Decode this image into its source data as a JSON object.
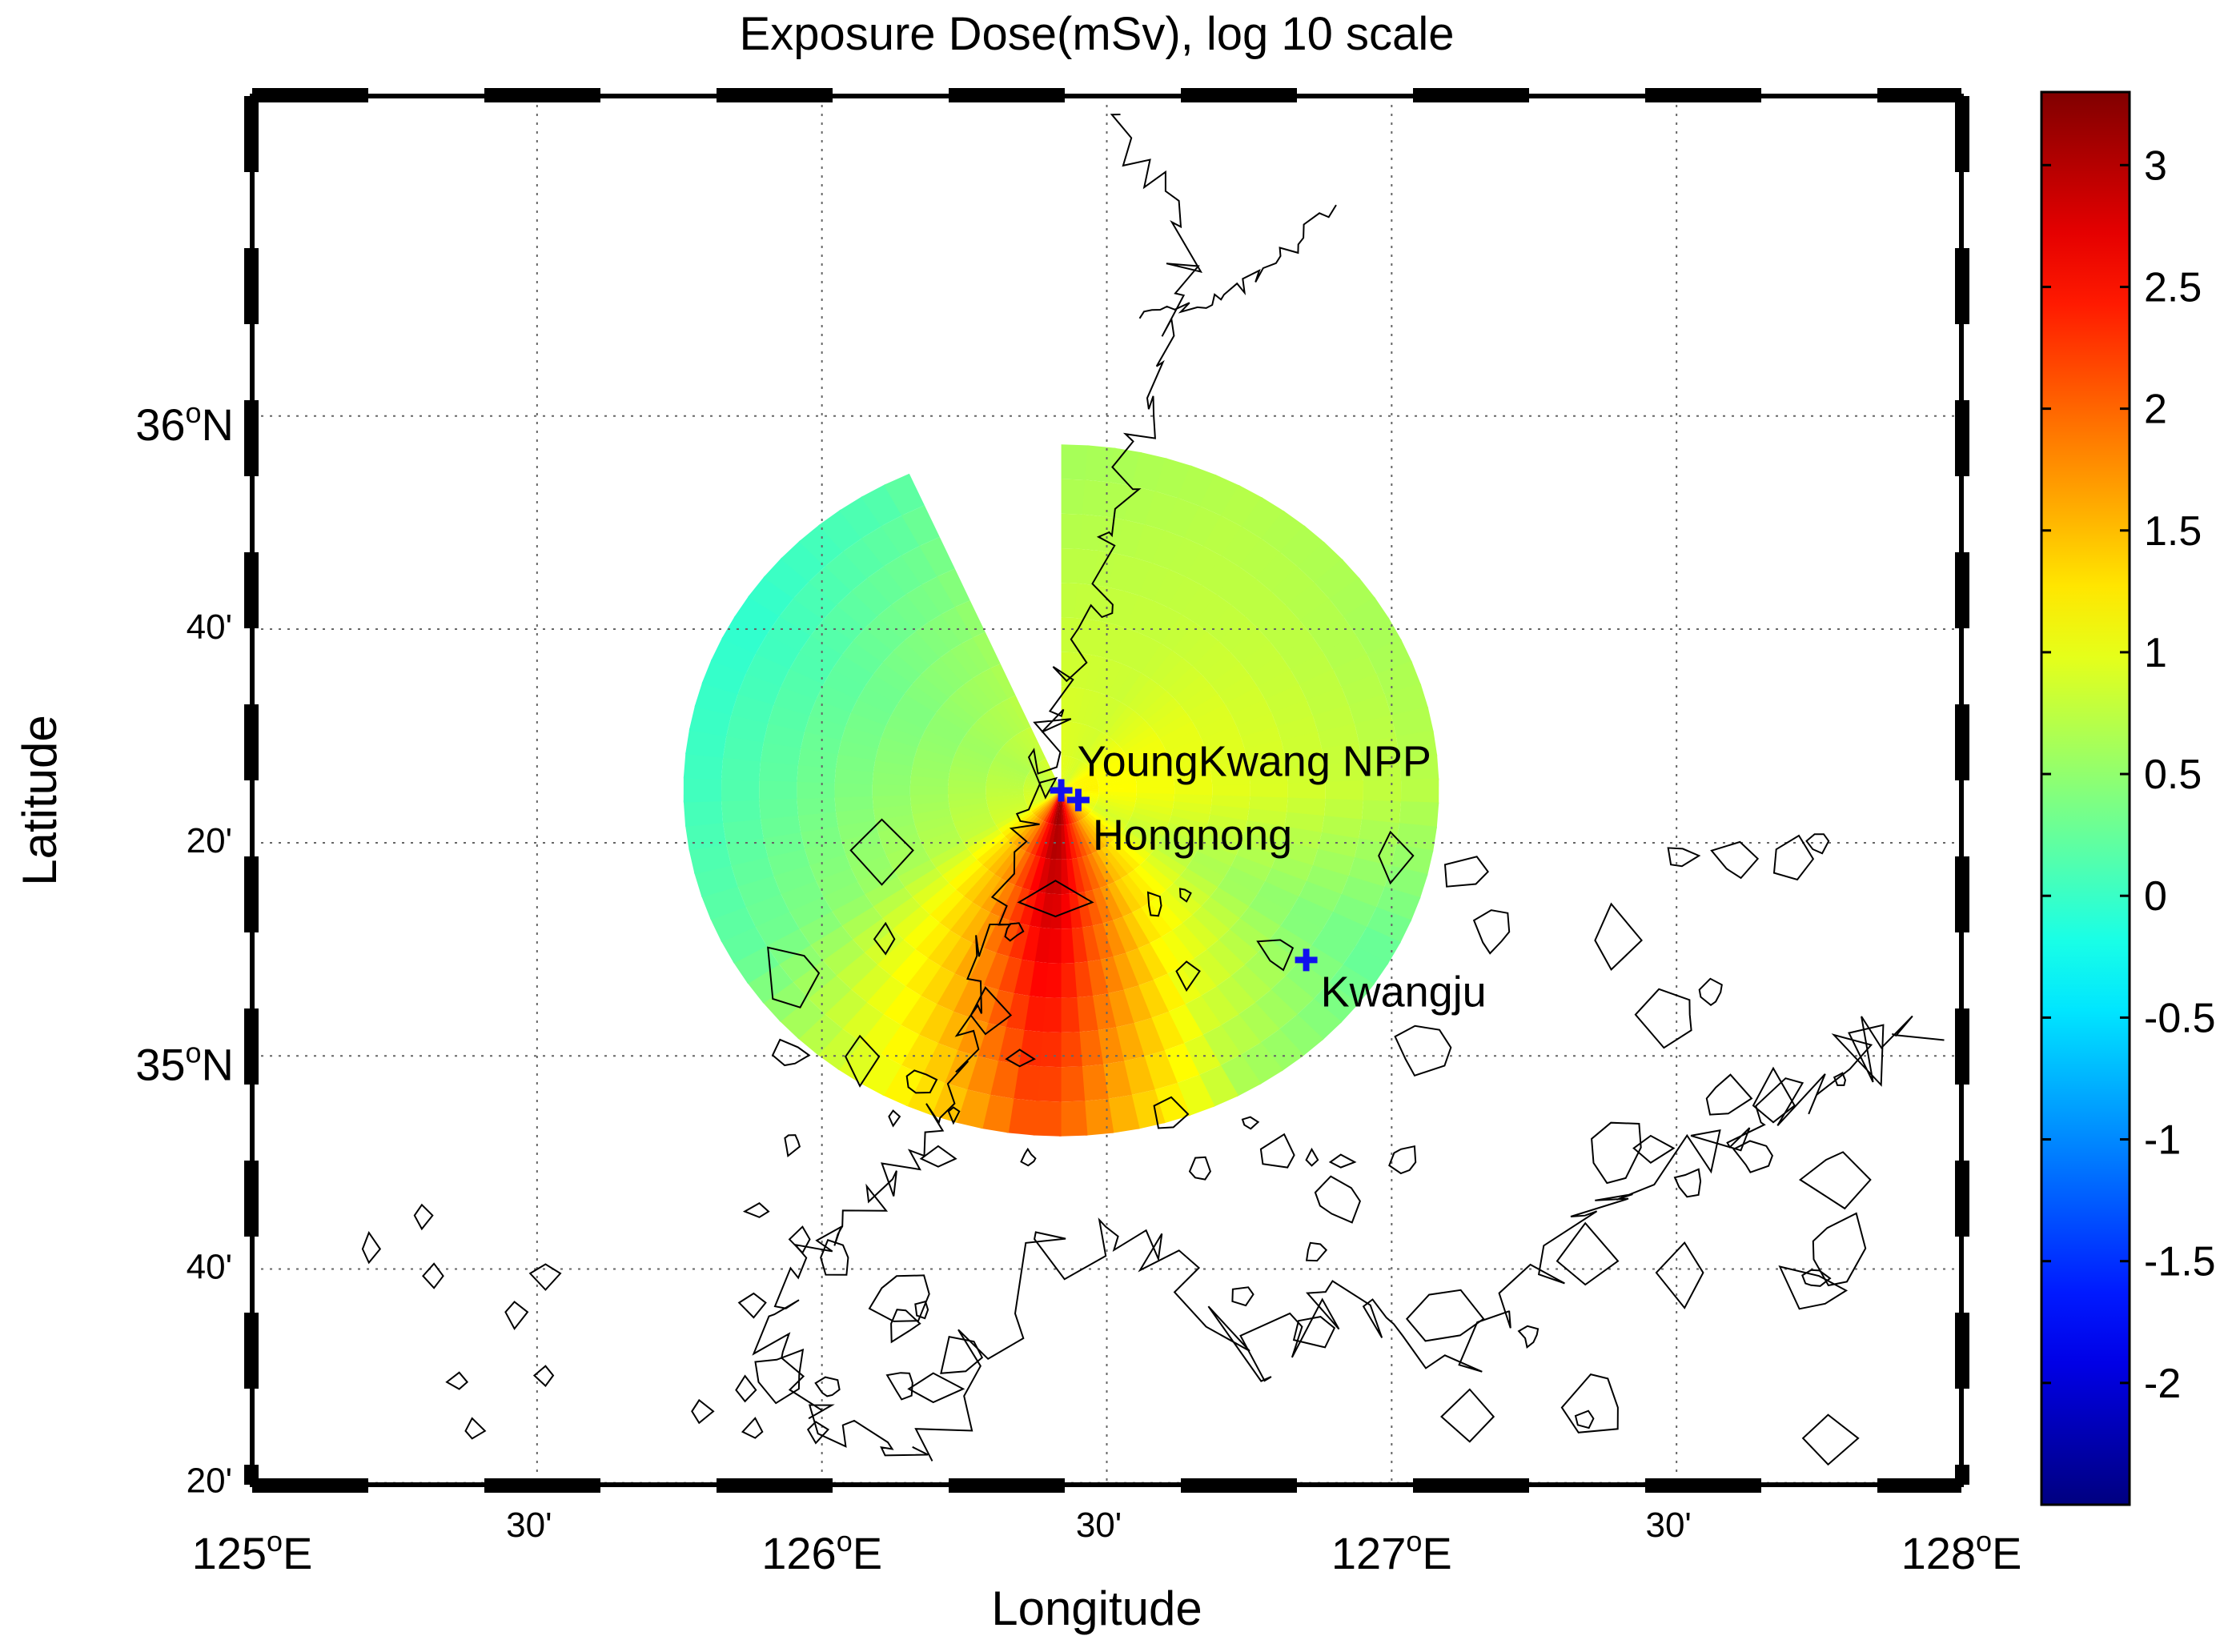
{
  "figure": {
    "title": "Exposure Dose(mSv), log 10 scale",
    "xlabel": "Longitude",
    "ylabel": "Latitude"
  },
  "map": {
    "projection": "mercator-like",
    "lon_range": [
      125.0,
      128.0
    ],
    "lat_range": [
      34.33,
      36.5
    ],
    "lon_ticks": [
      {
        "lon": 125.0,
        "deg": "125",
        "suffix": "E",
        "kind": "degree"
      },
      {
        "lon": 125.5,
        "text": "30'",
        "kind": "minute"
      },
      {
        "lon": 126.0,
        "deg": "126",
        "suffix": "E",
        "kind": "degree"
      },
      {
        "lon": 126.5,
        "text": "30'",
        "kind": "minute"
      },
      {
        "lon": 127.0,
        "deg": "127",
        "suffix": "E",
        "kind": "degree"
      },
      {
        "lon": 127.5,
        "text": "30'",
        "kind": "minute"
      },
      {
        "lon": 128.0,
        "deg": "128",
        "suffix": "E",
        "kind": "degree"
      }
    ],
    "lat_ticks": [
      {
        "lat": 36.0,
        "deg": "36",
        "suffix": "N",
        "kind": "degree"
      },
      {
        "lat": 35.667,
        "text": "40'",
        "kind": "minute"
      },
      {
        "lat": 35.333,
        "text": "20'",
        "kind": "minute"
      },
      {
        "lat": 35.0,
        "deg": "35",
        "suffix": "N",
        "kind": "degree"
      },
      {
        "lat": 34.667,
        "text": "40'",
        "kind": "minute"
      },
      {
        "lat": 34.333,
        "text": "20'",
        "kind": "minute"
      }
    ],
    "grid": true,
    "frame": "black-white-checkered"
  },
  "markers": [
    {
      "name": "YoungKwang NPP",
      "lon": 126.42,
      "lat": 35.415,
      "color": "#1010ee"
    },
    {
      "name": "Hongnong",
      "lon": 126.45,
      "lat": 35.4,
      "color": "#1010ee"
    },
    {
      "name": "Kwangju",
      "lon": 126.85,
      "lat": 35.15,
      "color": "#1010ee"
    }
  ],
  "colorbar": {
    "colormap": "jet",
    "range": [
      -2.5,
      3.3
    ],
    "ticks": [
      "3",
      "2.5",
      "2",
      "1.5",
      "1",
      "0.5",
      "0",
      "-0.5",
      "-1",
      "-1.5",
      "-2"
    ],
    "tick_values": [
      3,
      2.5,
      2,
      1.5,
      1,
      0.5,
      0,
      -0.5,
      -1,
      -1.5,
      -2
    ]
  },
  "chart_data": {
    "type": "heatmap",
    "title": "Exposure Dose(mSv), log 10 scale",
    "xlabel": "Longitude",
    "ylabel": "Latitude",
    "units": "log10 mSv",
    "source_lon": 126.42,
    "source_lat": 35.415,
    "max_range_km": 60,
    "missing_sector_bearing_deg": [
      -25,
      0
    ],
    "radial_profile": {
      "bearing_deg": [
        0,
        30,
        60,
        90,
        120,
        150,
        170,
        180,
        185,
        190,
        200,
        210,
        240,
        270,
        300,
        330
      ],
      "near_source": [
        1.0,
        0.9,
        1.2,
        1.2,
        1.0,
        1.8,
        2.6,
        3.1,
        3.2,
        3.1,
        2.6,
        2.0,
        1.0,
        0.9,
        0.8,
        0.9
      ],
      "at_edge": [
        0.6,
        0.7,
        0.6,
        0.7,
        0.2,
        0.6,
        1.5,
        2.0,
        2.1,
        1.8,
        1.3,
        1.0,
        0.2,
        0.0,
        -0.1,
        0.1
      ]
    }
  }
}
